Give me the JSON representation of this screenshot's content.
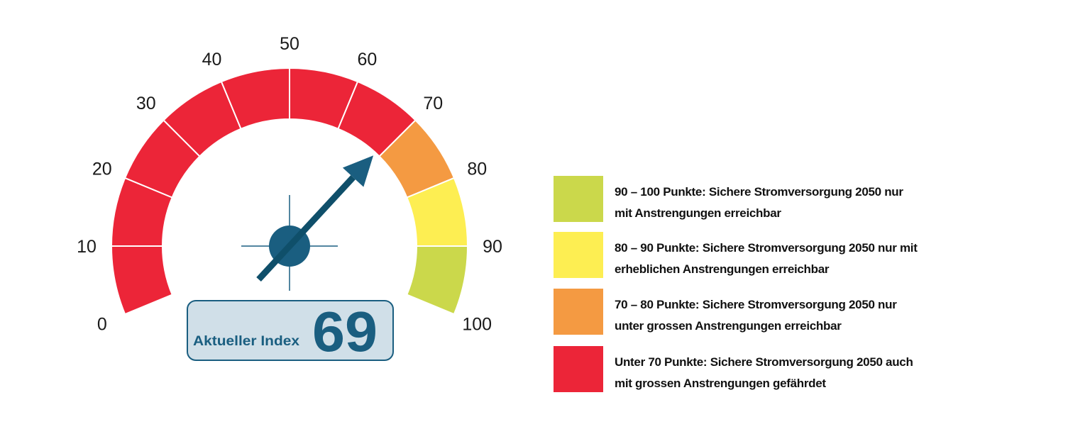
{
  "chart_data": {
    "type": "gauge",
    "min": 0,
    "max": 100,
    "value": 69,
    "value_label": "Aktueller Index",
    "value_text": "69",
    "tick_labels": [
      "0",
      "10",
      "20",
      "30",
      "40",
      "50",
      "60",
      "70",
      "80",
      "90",
      "100"
    ],
    "bands": [
      {
        "from": 0,
        "to": 70,
        "color": "#ec2538"
      },
      {
        "from": 70,
        "to": 80,
        "color": "#f49a42"
      },
      {
        "from": 80,
        "to": 90,
        "color": "#fdee52"
      },
      {
        "from": 90,
        "to": 100,
        "color": "#cbd84b"
      }
    ],
    "needle_color": "#1a5e80",
    "legend": [
      {
        "color": "#cbd84b",
        "text": "90 – 100 Punkte: Sichere Stromversorgung 2050 nur\nmit Anstrengungen erreichbar"
      },
      {
        "color": "#fdee52",
        "text": "80 – 90 Punkte: Sichere Stromversorgung 2050 nur mit\nerheblichen Anstrengungen erreichbar"
      },
      {
        "color": "#f49a42",
        "text": "70 – 80 Punkte: Sichere Stromversorgung 2050 nur\nunter grossen Anstrengungen erreichbar"
      },
      {
        "color": "#ec2538",
        "text": "Unter 70 Punkte: Sichere Stromversorgung 2050 auch\nmit grossen Anstrengungen gefährdet"
      }
    ]
  }
}
